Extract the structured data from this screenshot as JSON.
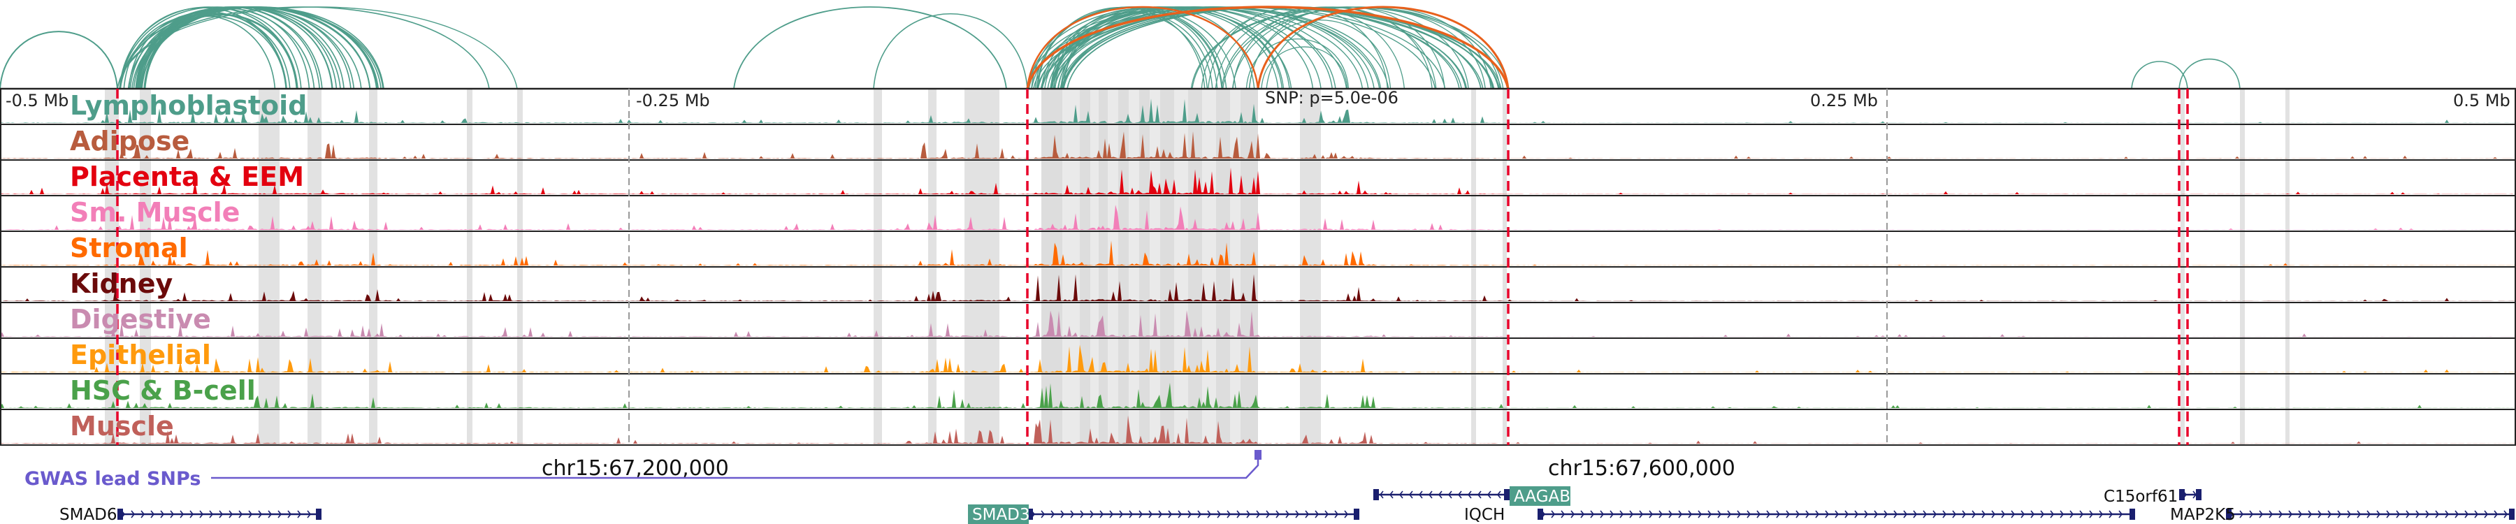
{
  "colors": {
    "arc": "#4e9d8a",
    "arc_highlight": "#e8601c",
    "gene_label_bg": "#4e9d8a",
    "gene_bar": "#1a1f6e",
    "gwas": "#6a5acd",
    "dashed": "#e8002a",
    "pale_band": "#e2e2e2"
  },
  "scale": {
    "labels": [
      "-0.5 Mb",
      "-0.25 Mb",
      "0.25 Mb",
      "0.5 Mb"
    ],
    "snp_label": "SNP: p=5.0e-06"
  },
  "tracks": [
    {
      "name": "Lymphoblastoid",
      "color": "#4e9d8a"
    },
    {
      "name": "Adipose",
      "color": "#b85c3e"
    },
    {
      "name": "Placenta & EEM",
      "color": "#e3000f"
    },
    {
      "name": "Sm. Muscle",
      "color": "#f27fb8"
    },
    {
      "name": "Stromal",
      "color": "#ff6a00"
    },
    {
      "name": "Kidney",
      "color": "#6b0a0a"
    },
    {
      "name": "Digestive",
      "color": "#c98bb0"
    },
    {
      "name": "Epithelial",
      "color": "#ff9a0d"
    },
    {
      "name": "HSC & B-cell",
      "color": "#4aa14a"
    },
    {
      "name": "Muscle",
      "color": "#c0605a"
    }
  ],
  "coords": [
    "chr15:67,200,000",
    "chr15:67,600,000"
  ],
  "gwas_label": "GWAS lead SNPs",
  "genes": [
    {
      "name": "SMAD6",
      "boxed": false
    },
    {
      "name": "SMAD3",
      "boxed": true
    },
    {
      "name": "AAGAB",
      "boxed": true
    },
    {
      "name": "IQCH",
      "boxed": false
    },
    {
      "name": "C15orf61",
      "boxed": false
    },
    {
      "name": "MAP2K5",
      "boxed": false
    }
  ]
}
